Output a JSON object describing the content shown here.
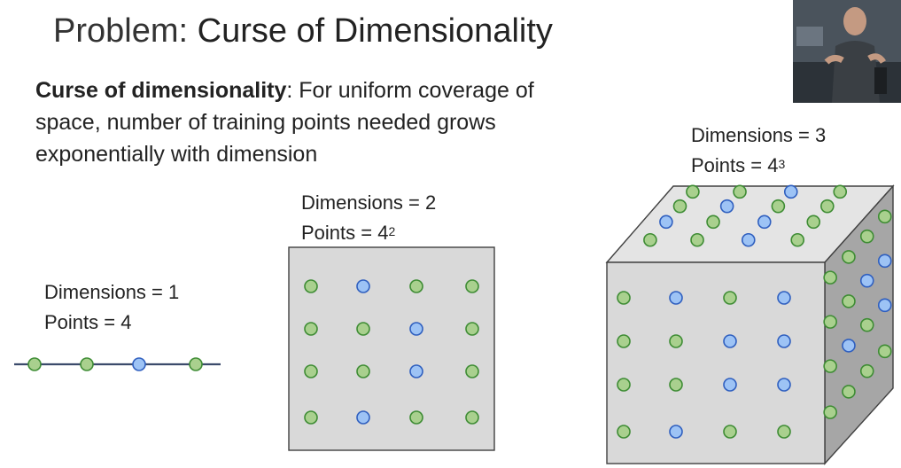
{
  "slide": {
    "title_prefix": "Problem: ",
    "title_main": "Curse of Dimensionality",
    "term": "Curse of dimensionality",
    "definition": ": For uniform coverage of space, number of training points needed grows exponentially with dimension"
  },
  "panels": {
    "one_d": {
      "dimensions": "Dimensions = 1",
      "points": "Points = 4"
    },
    "two_d": {
      "dimensions": "Dimensions = 2",
      "points_base": "Points = 4",
      "points_exp": "2"
    },
    "three_d": {
      "dimensions": "Dimensions = 3",
      "points_base": "Points = 4",
      "points_exp": "3"
    }
  },
  "colors": {
    "green_fill": "#a9d08e",
    "green_stroke": "#3e8c34",
    "blue_fill": "#9dc3f5",
    "blue_stroke": "#2f5fbf",
    "face_front": "#d9d9d9",
    "face_top": "#e4e4e4",
    "face_side": "#a6a6a6",
    "edge": "#404040",
    "line": "#3b4a6b"
  },
  "icons": {
    "webcam": "presenter-webcam-thumbnail"
  }
}
